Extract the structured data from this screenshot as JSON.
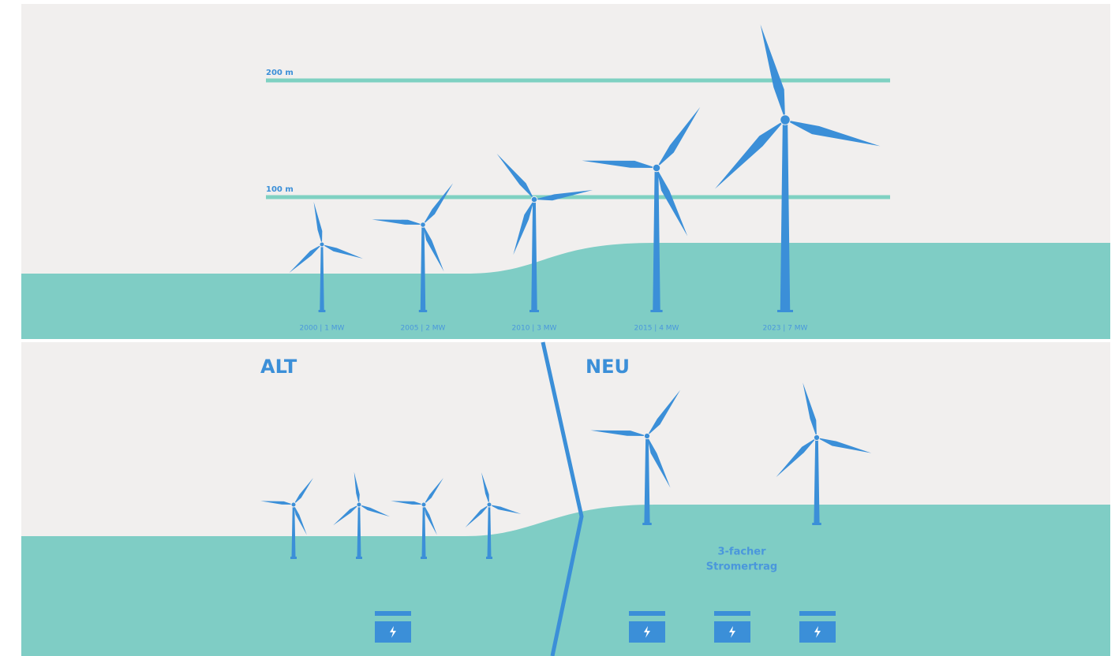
{
  "height_lines": {
    "top": "200 m",
    "middle": "100 m"
  },
  "turbines": [
    "2000 | 1 MW",
    "2005 | 2 MW",
    "2010 | 3 MW",
    "2015 | 4 MW",
    "2023 | 7 MW"
  ],
  "comparison": {
    "old": "ALT",
    "new": "NEU",
    "yield_line1": "3-facher",
    "yield_line2": "Stromertrag"
  }
}
